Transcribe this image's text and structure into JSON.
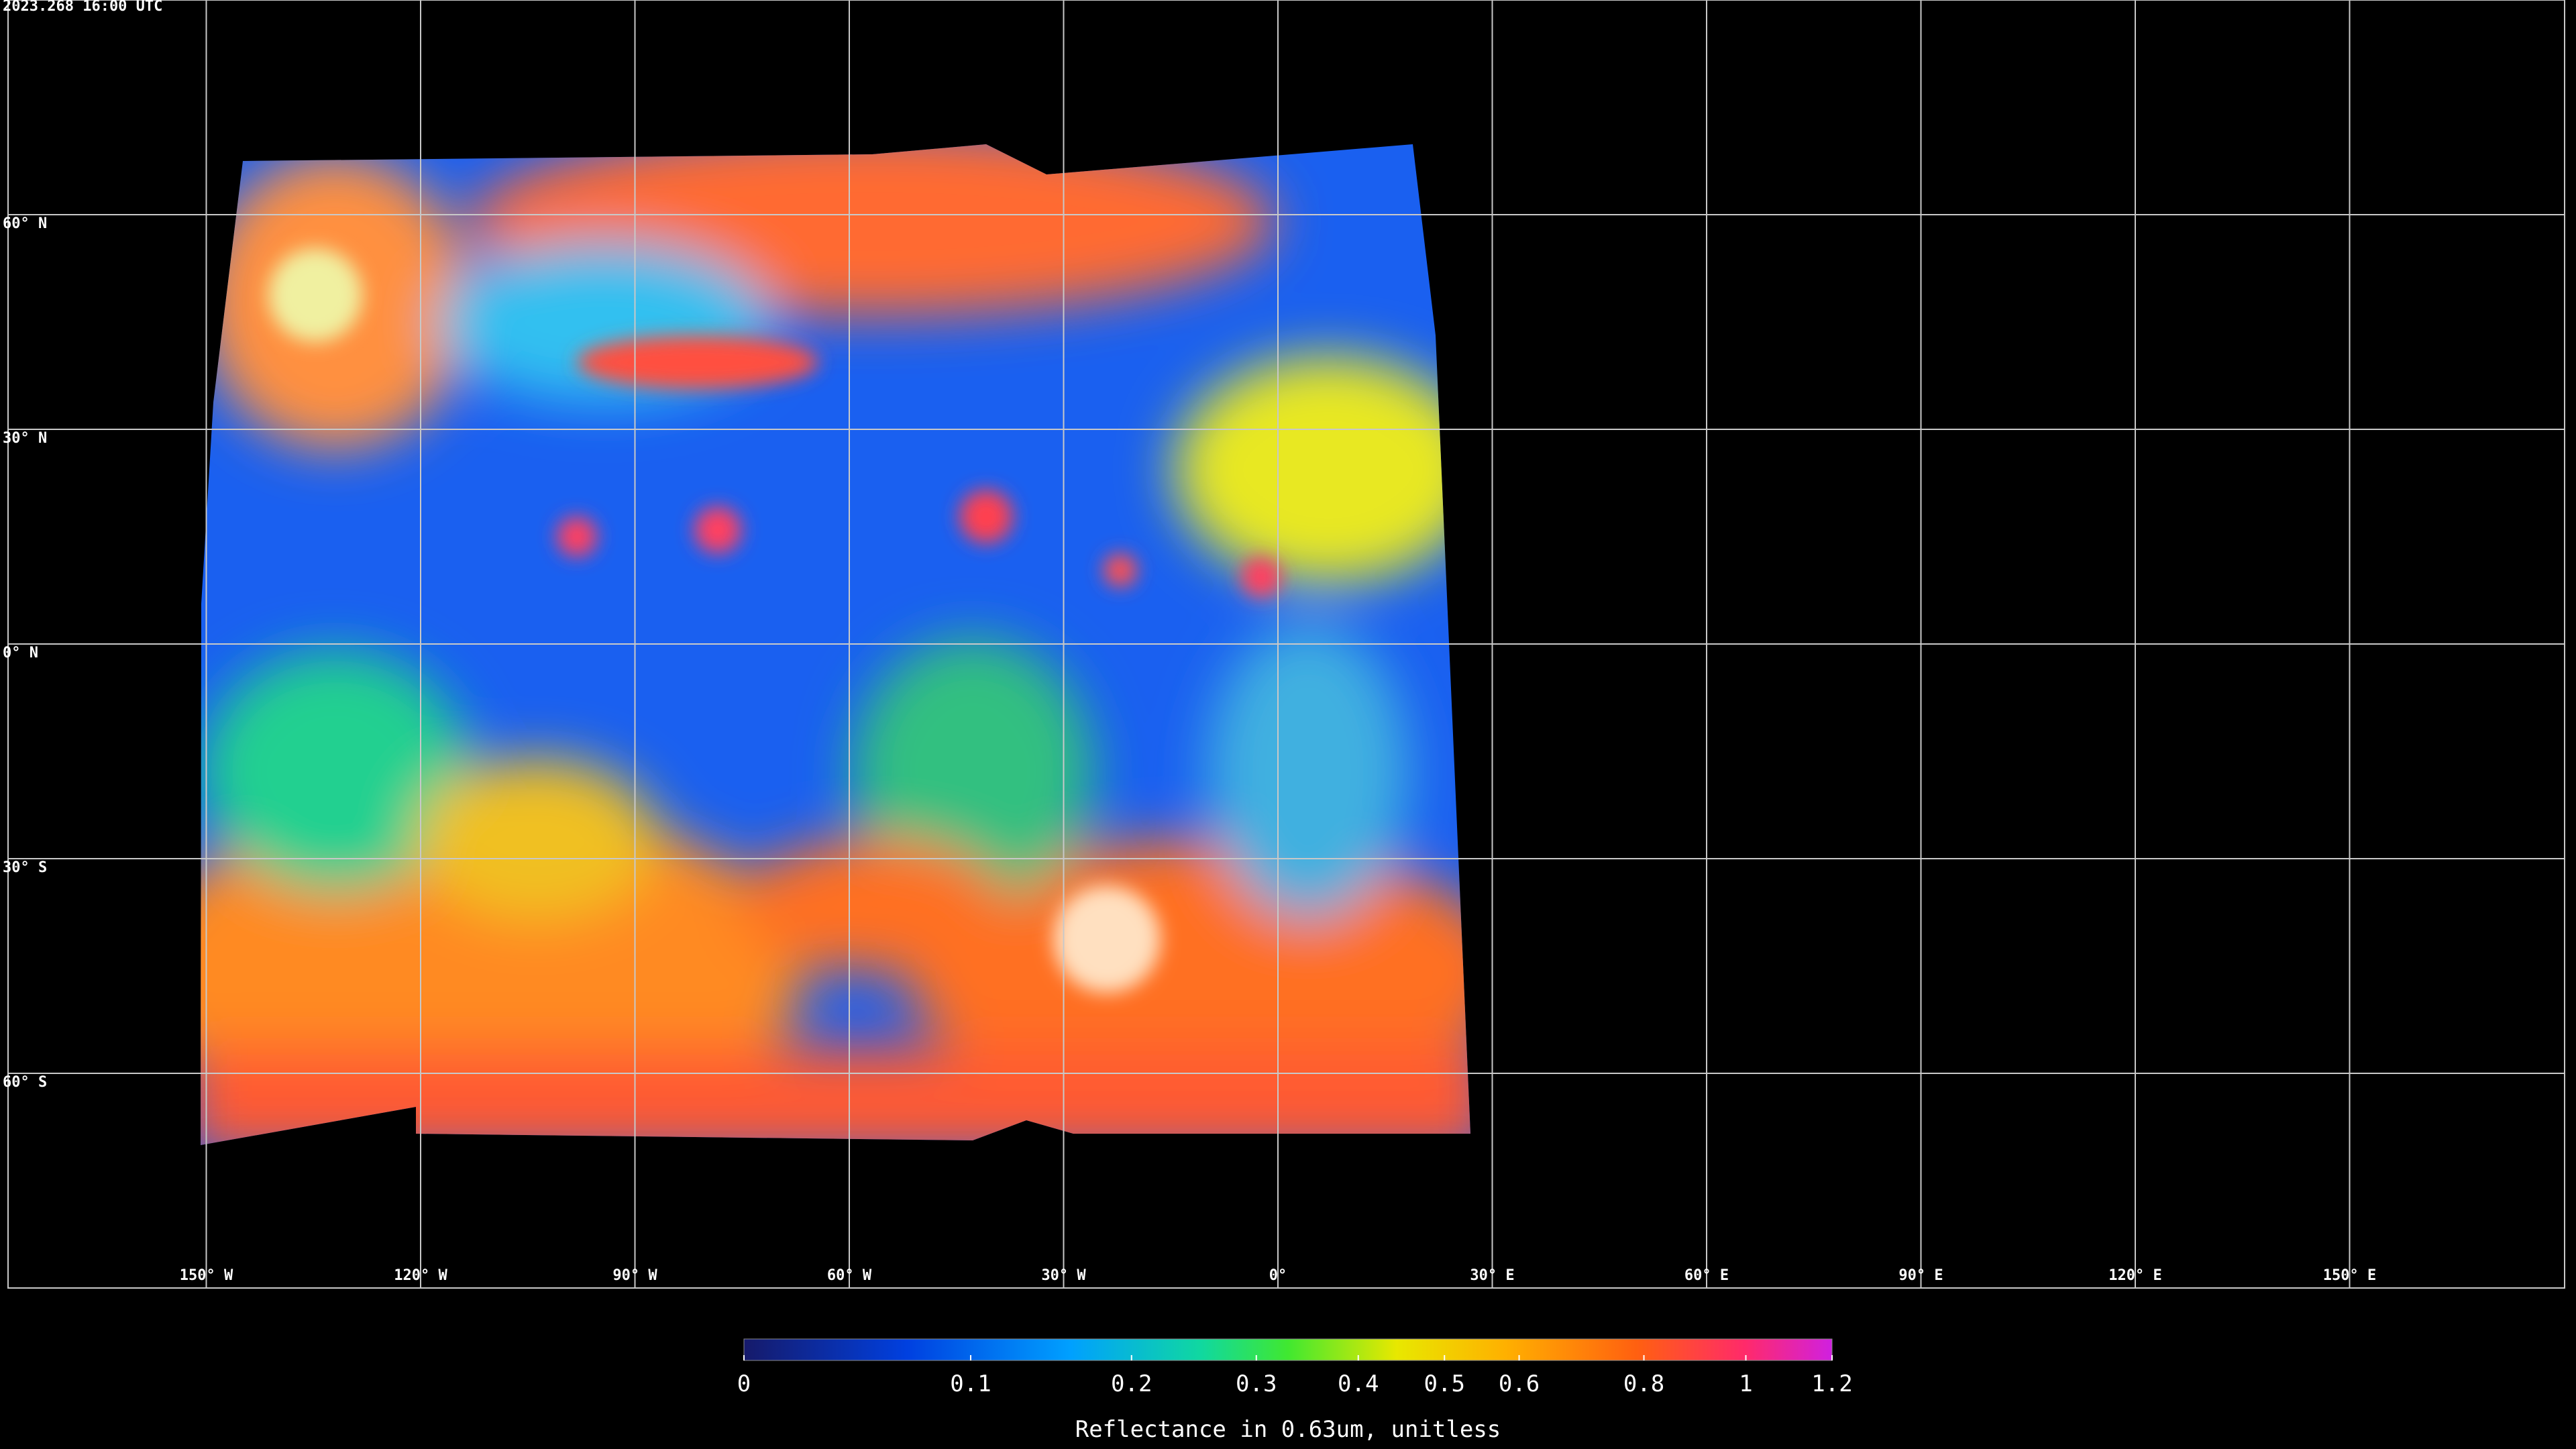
{
  "timestamp": "2023.268 16:00 UTC",
  "map": {
    "lat_labels": [
      "60° N",
      "30° N",
      "0° N",
      "30° S",
      "60° S"
    ],
    "lon_labels": [
      "150° W",
      "120° W",
      "90° W",
      "60° W",
      "30° W",
      "0°",
      "30° E",
      "60° E",
      "90° E",
      "120° E",
      "150° E"
    ]
  },
  "colorbar": {
    "label": "Reflectance in 0.63um, unitless",
    "range": [
      0,
      1.2
    ],
    "ticks": [
      0,
      0.1,
      0.2,
      0.3,
      0.4,
      0.5,
      0.6,
      0.8,
      1,
      1.2
    ]
  }
}
